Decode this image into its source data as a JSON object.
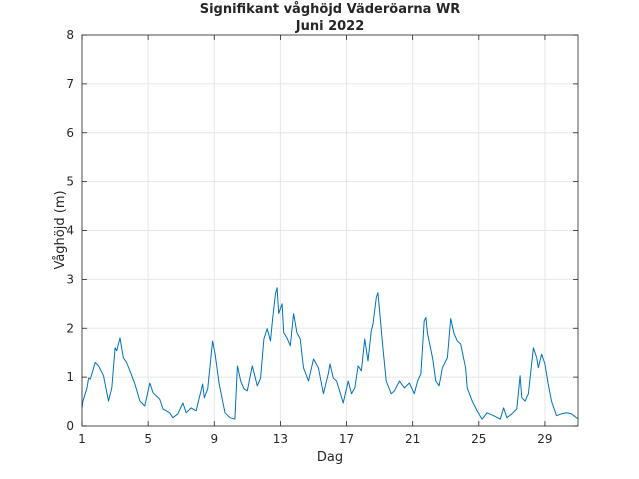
{
  "chart_data": {
    "type": "line",
    "title": "Signifikant våghöjd Väderöarna WR",
    "subtitle": "Juni 2022",
    "xlabel": "Dag",
    "ylabel": "Våghöjd (m)",
    "xlim": [
      1,
      31
    ],
    "ylim": [
      0,
      8
    ],
    "xticks": [
      1,
      5,
      9,
      13,
      17,
      21,
      25,
      29
    ],
    "yticks": [
      0,
      1,
      2,
      3,
      4,
      5,
      6,
      7,
      8
    ],
    "grid": true,
    "line_color": "#0072bd",
    "series": [
      {
        "name": "Våghöjd",
        "x": [
          1.0,
          1.05,
          1.3,
          1.4,
          1.5,
          1.8,
          2.0,
          2.3,
          2.6,
          2.8,
          3.0,
          3.1,
          3.3,
          3.5,
          3.7,
          3.9,
          4.2,
          4.5,
          4.8,
          5.1,
          5.3,
          5.7,
          5.9,
          6.3,
          6.5,
          6.8,
          7.1,
          7.3,
          7.6,
          7.9,
          8.3,
          8.4,
          8.6,
          8.9,
          9.05,
          9.3,
          9.65,
          9.95,
          10.25,
          10.4,
          10.6,
          10.8,
          11.0,
          11.3,
          11.6,
          11.8,
          12.0,
          12.2,
          12.4,
          12.5,
          12.7,
          12.8,
          12.9,
          13.1,
          13.2,
          13.4,
          13.6,
          13.8,
          14.0,
          14.2,
          14.4,
          14.7,
          15.0,
          15.3,
          15.6,
          15.9,
          16.0,
          16.2,
          16.4,
          16.8,
          17.1,
          17.3,
          17.5,
          17.7,
          17.9,
          18.1,
          18.3,
          18.5,
          18.6,
          18.8,
          18.9,
          19.0,
          19.2,
          19.4,
          19.7,
          19.9,
          20.2,
          20.5,
          20.8,
          21.1,
          21.3,
          21.5,
          21.7,
          21.8,
          21.9,
          22.2,
          22.4,
          22.6,
          22.8,
          23.1,
          23.3,
          23.5,
          23.7,
          23.9,
          24.2,
          24.3,
          24.6,
          24.9,
          25.2,
          25.5,
          25.9,
          26.3,
          26.5,
          26.7,
          27.0,
          27.3,
          27.5,
          27.6,
          27.8,
          28.0,
          28.3,
          28.5,
          28.6,
          28.8,
          29.0,
          29.2,
          29.4,
          29.7,
          30.0,
          30.3,
          30.6,
          30.9,
          31.0
        ],
        "y": [
          0.37,
          0.5,
          0.78,
          0.98,
          0.96,
          1.3,
          1.23,
          1.03,
          0.51,
          0.78,
          1.6,
          1.54,
          1.8,
          1.4,
          1.3,
          1.13,
          0.86,
          0.51,
          0.41,
          0.88,
          0.68,
          0.55,
          0.35,
          0.27,
          0.17,
          0.25,
          0.47,
          0.27,
          0.37,
          0.31,
          0.86,
          0.58,
          0.76,
          1.74,
          1.47,
          0.86,
          0.27,
          0.17,
          0.14,
          1.23,
          0.92,
          0.76,
          0.72,
          1.23,
          0.82,
          0.98,
          1.78,
          1.99,
          1.74,
          2.09,
          2.7,
          2.83,
          2.3,
          2.5,
          1.91,
          1.8,
          1.64,
          2.3,
          1.91,
          1.78,
          1.19,
          0.92,
          1.37,
          1.19,
          0.66,
          1.07,
          1.27,
          0.98,
          0.92,
          0.47,
          0.92,
          0.66,
          0.78,
          1.23,
          1.13,
          1.78,
          1.33,
          1.95,
          2.09,
          2.63,
          2.73,
          2.36,
          1.6,
          0.92,
          0.66,
          0.72,
          0.92,
          0.78,
          0.88,
          0.66,
          0.92,
          1.07,
          2.15,
          2.22,
          1.89,
          1.4,
          0.92,
          0.82,
          1.19,
          1.4,
          2.2,
          1.89,
          1.74,
          1.68,
          1.19,
          0.78,
          0.51,
          0.31,
          0.14,
          0.27,
          0.21,
          0.14,
          0.37,
          0.17,
          0.25,
          0.35,
          1.03,
          0.58,
          0.51,
          0.66,
          1.6,
          1.4,
          1.19,
          1.47,
          1.27,
          0.86,
          0.51,
          0.21,
          0.25,
          0.27,
          0.25,
          0.17,
          0.15
        ]
      }
    ]
  }
}
